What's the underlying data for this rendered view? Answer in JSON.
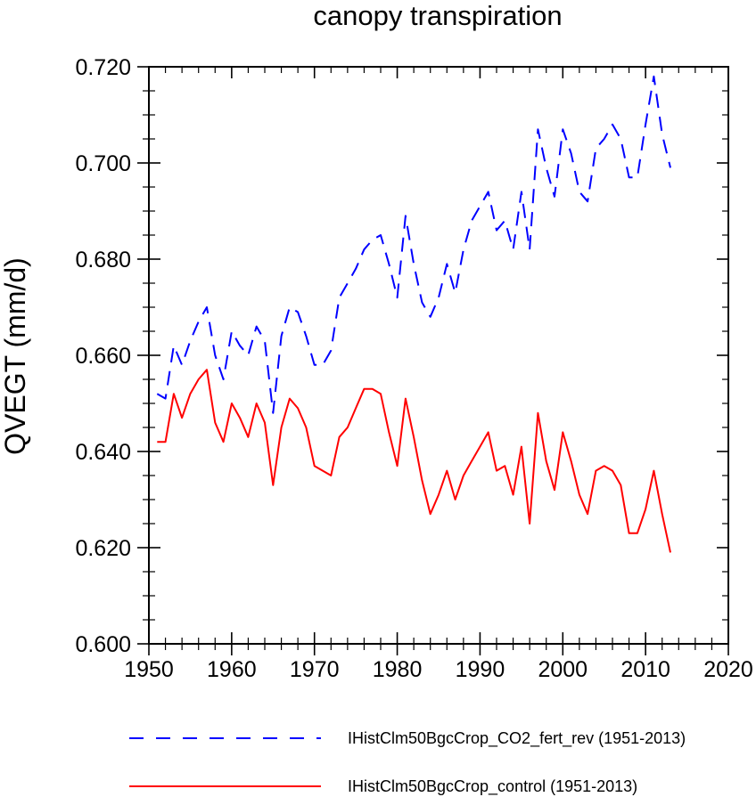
{
  "chart_data": {
    "type": "line",
    "title": "canopy transpiration",
    "xlabel": "",
    "ylabel": "QVEGT  (mm/d)",
    "xlim": [
      1950,
      2020
    ],
    "ylim": [
      0.6,
      0.72
    ],
    "xticks": [
      1950,
      1960,
      1970,
      1980,
      1990,
      2000,
      2010,
      2020
    ],
    "xtick_labels": [
      "1950",
      "1960",
      "1970",
      "1980",
      "1990",
      "2000",
      "2010",
      "2020"
    ],
    "yticks": [
      0.6,
      0.62,
      0.64,
      0.66,
      0.68,
      0.7,
      0.72
    ],
    "ytick_labels": [
      "0.600",
      "0.620",
      "0.640",
      "0.660",
      "0.680",
      "0.700",
      "0.720"
    ],
    "grid": false,
    "legend_position": "bottom",
    "x": [
      1951,
      1952,
      1953,
      1954,
      1955,
      1956,
      1957,
      1958,
      1959,
      1960,
      1961,
      1962,
      1963,
      1964,
      1965,
      1966,
      1967,
      1968,
      1969,
      1970,
      1971,
      1972,
      1973,
      1974,
      1975,
      1976,
      1977,
      1978,
      1979,
      1980,
      1981,
      1982,
      1983,
      1984,
      1985,
      1986,
      1987,
      1988,
      1989,
      1990,
      1991,
      1992,
      1993,
      1994,
      1995,
      1996,
      1997,
      1998,
      1999,
      2000,
      2001,
      2002,
      2003,
      2004,
      2005,
      2006,
      2007,
      2008,
      2009,
      2010,
      2011,
      2012,
      2013
    ],
    "series": [
      {
        "name": "IHistClm50BgcCrop_CO2_fert_rev (1951-2013)",
        "color": "#0000ff",
        "dash": "dashed",
        "values": [
          0.652,
          0.651,
          0.662,
          0.658,
          0.663,
          0.667,
          0.67,
          0.66,
          0.655,
          0.665,
          0.662,
          0.66,
          0.666,
          0.663,
          0.648,
          0.664,
          0.67,
          0.669,
          0.664,
          0.658,
          0.658,
          0.661,
          0.672,
          0.675,
          0.678,
          0.682,
          0.684,
          0.685,
          0.679,
          0.672,
          0.689,
          0.679,
          0.671,
          0.668,
          0.672,
          0.679,
          0.673,
          0.682,
          0.688,
          0.691,
          0.694,
          0.686,
          0.688,
          0.682,
          0.694,
          0.682,
          0.707,
          0.699,
          0.693,
          0.707,
          0.702,
          0.694,
          0.692,
          0.703,
          0.705,
          0.708,
          0.705,
          0.697,
          0.697,
          0.708,
          0.718,
          0.706,
          0.699
        ]
      },
      {
        "name": "IHistClm50BgcCrop_control (1951-2013)",
        "color": "#ff0000",
        "dash": "solid",
        "values": [
          0.642,
          0.642,
          0.652,
          0.647,
          0.652,
          0.655,
          0.657,
          0.646,
          0.642,
          0.65,
          0.647,
          0.643,
          0.65,
          0.646,
          0.633,
          0.645,
          0.651,
          0.649,
          0.645,
          0.637,
          0.636,
          0.635,
          0.643,
          0.645,
          0.649,
          0.653,
          0.653,
          0.652,
          0.644,
          0.637,
          0.651,
          0.643,
          0.634,
          0.627,
          0.631,
          0.636,
          0.63,
          0.635,
          0.638,
          0.641,
          0.644,
          0.636,
          0.637,
          0.631,
          0.641,
          0.625,
          0.648,
          0.638,
          0.632,
          0.644,
          0.638,
          0.631,
          0.627,
          0.636,
          0.637,
          0.636,
          0.633,
          0.623,
          0.623,
          0.628,
          0.636,
          0.627,
          0.619
        ]
      }
    ]
  }
}
